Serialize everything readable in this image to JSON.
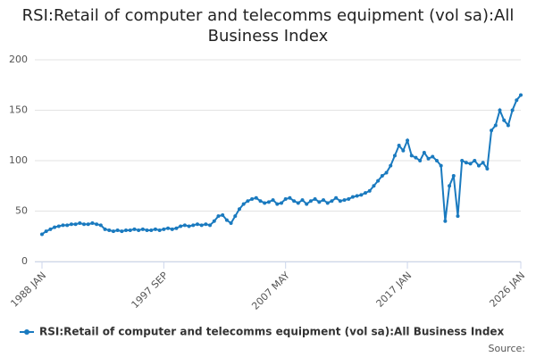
{
  "chart_data": {
    "type": "line",
    "title": "RSI:Retail of computer and telecomms equipment (vol sa):All Business Index",
    "source": "Source:",
    "categories": [
      "1988 JAN",
      null,
      null,
      null,
      null,
      null,
      null,
      null,
      null,
      null,
      null,
      null,
      null,
      null,
      null,
      null,
      null,
      null,
      null,
      null,
      null,
      null,
      null,
      null,
      null,
      null,
      null,
      null,
      null,
      "1997 SEP",
      null,
      null,
      null,
      null,
      null,
      null,
      null,
      null,
      null,
      null,
      null,
      null,
      null,
      null,
      null,
      null,
      null,
      null,
      null,
      null,
      null,
      null,
      null,
      null,
      null,
      null,
      null,
      null,
      "2007 MAY",
      null,
      null,
      null,
      null,
      null,
      null,
      null,
      null,
      null,
      null,
      null,
      null,
      null,
      null,
      null,
      null,
      null,
      null,
      null,
      null,
      null,
      null,
      null,
      null,
      null,
      null,
      null,
      null,
      "2017 JAN",
      null,
      null,
      null,
      null,
      null,
      null,
      null,
      null,
      null,
      null,
      null,
      null,
      null,
      null,
      null,
      null,
      null,
      null,
      null,
      null,
      null,
      null,
      null,
      null,
      null,
      null,
      "2026 JAN"
    ],
    "series": [
      {
        "name": "RSI:Retail of computer and telecomms equipment (vol sa):All Business Index",
        "color": "#1a7abf",
        "values": [
          27,
          30,
          32,
          34,
          35,
          36,
          36,
          37,
          37,
          38,
          37,
          37,
          38,
          37,
          36,
          32,
          31,
          30,
          31,
          30,
          31,
          31,
          32,
          31,
          32,
          31,
          31,
          32,
          31,
          32,
          33,
          32,
          33,
          35,
          36,
          35,
          36,
          37,
          36,
          37,
          36,
          40,
          45,
          46,
          41,
          38,
          45,
          52,
          57,
          60,
          62,
          63,
          60,
          58,
          59,
          61,
          57,
          58,
          62,
          63,
          60,
          58,
          61,
          57,
          60,
          62,
          59,
          61,
          58,
          60,
          63,
          60,
          61,
          62,
          64,
          65,
          66,
          68,
          70,
          75,
          80,
          85,
          88,
          95,
          105,
          115,
          110,
          120,
          105,
          103,
          100,
          108,
          102,
          104,
          100,
          95,
          40,
          75,
          85,
          45,
          100,
          98,
          97,
          100,
          95,
          98,
          92,
          130,
          135,
          150,
          140,
          135,
          150,
          160,
          165
        ]
      }
    ],
    "ylim": [
      0,
      200
    ],
    "yticks": [
      0,
      50,
      100,
      150,
      200
    ],
    "grid": true
  }
}
